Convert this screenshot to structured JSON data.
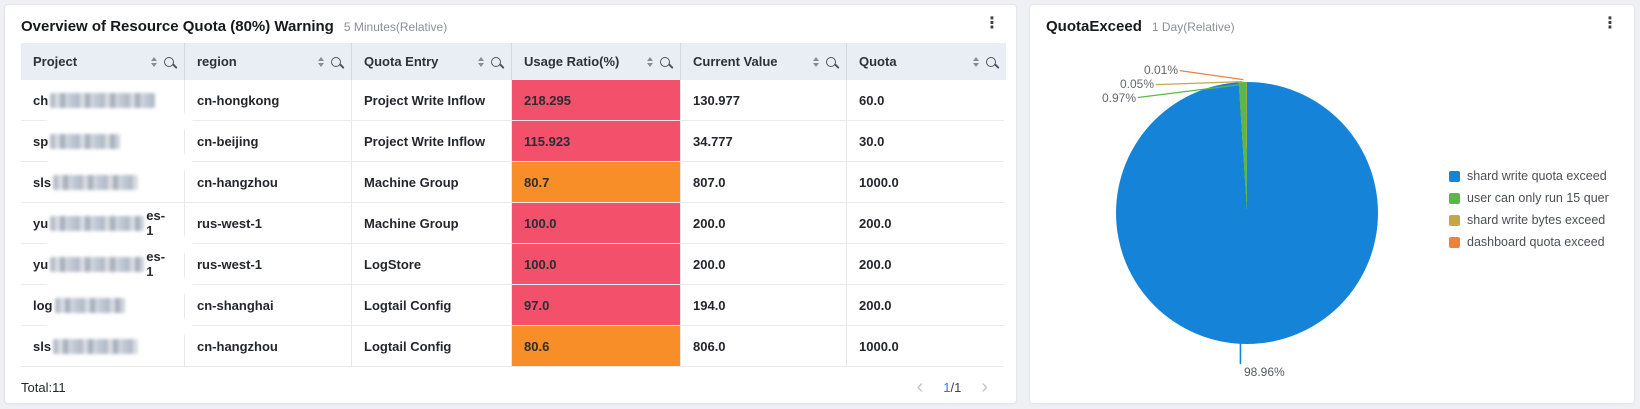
{
  "left_panel": {
    "title": "Overview of Resource Quota (80%) Warning",
    "time_range": "5 Minutes(Relative)",
    "table": {
      "columns": [
        "Project",
        "region",
        "Quota Entry",
        "Usage Ratio(%)",
        "Current Value",
        "Quota"
      ],
      "rows": [
        {
          "project_prefix": "ch",
          "project_suffix": "",
          "project_redacted": true,
          "region": "cn-hongkong",
          "quota_entry": "Project Write Inflow",
          "usage_ratio": "218.295",
          "usage_level": "critical",
          "current_value": "130.977",
          "quota": "60.0"
        },
        {
          "project_prefix": "sp",
          "project_suffix": "",
          "project_redacted": true,
          "region": "cn-beijing",
          "quota_entry": "Project Write Inflow",
          "usage_ratio": "115.923",
          "usage_level": "critical",
          "current_value": "34.777",
          "quota": "30.0"
        },
        {
          "project_prefix": "sls",
          "project_suffix": "",
          "project_redacted": true,
          "region": "cn-hangzhou",
          "quota_entry": "Machine Group",
          "usage_ratio": "80.7",
          "usage_level": "warning",
          "current_value": "807.0",
          "quota": "1000.0"
        },
        {
          "project_prefix": "yu",
          "project_suffix": "es-1",
          "project_redacted": true,
          "region": "rus-west-1",
          "quota_entry": "Machine Group",
          "usage_ratio": "100.0",
          "usage_level": "critical",
          "current_value": "200.0",
          "quota": "200.0"
        },
        {
          "project_prefix": "yu",
          "project_suffix": "es-1",
          "project_redacted": true,
          "region": "rus-west-1",
          "quota_entry": "LogStore",
          "usage_ratio": "100.0",
          "usage_level": "critical",
          "current_value": "200.0",
          "quota": "200.0"
        },
        {
          "project_prefix": "log",
          "project_suffix": "",
          "project_redacted": true,
          "region": "cn-shanghai",
          "quota_entry": "Logtail Config",
          "usage_ratio": "97.0",
          "usage_level": "critical",
          "current_value": "194.0",
          "quota": "200.0"
        },
        {
          "project_prefix": "sls",
          "project_suffix": "",
          "project_redacted": true,
          "region": "cn-hangzhou",
          "quota_entry": "Logtail Config",
          "usage_ratio": "80.6",
          "usage_level": "warning",
          "current_value": "806.0",
          "quota": "1000.0"
        }
      ],
      "usage_colors": {
        "critical": "#f2506b",
        "warning": "#f88e27"
      },
      "total_label": "Total:11",
      "pagination": {
        "current": "1",
        "separator": "/",
        "total": "1"
      }
    }
  },
  "right_panel": {
    "title": "QuotaExceed",
    "time_range": "1 Day(Relative)"
  },
  "chart_data": {
    "type": "pie",
    "title": "QuotaExceed",
    "legend_position": "right",
    "series": [
      {
        "name": "shard write quota exceed",
        "value": 98.96,
        "label": "98.96%",
        "color": "#1584d8"
      },
      {
        "name": "user can only run 15 quer",
        "value": 0.97,
        "label": "0.97%",
        "color": "#5cb64a"
      },
      {
        "name": "shard write bytes exceed",
        "value": 0.05,
        "label": "0.05%",
        "color": "#c7a64b"
      },
      {
        "name": "dashboard quota exceed",
        "value": 0.01,
        "label": "0.01%",
        "color": "#ea833f"
      }
    ]
  },
  "icons": {
    "kebab-menu": "⋮",
    "chevron-left": "‹",
    "chevron-right": "›",
    "sort": "sort-icon",
    "search": "search-icon"
  }
}
